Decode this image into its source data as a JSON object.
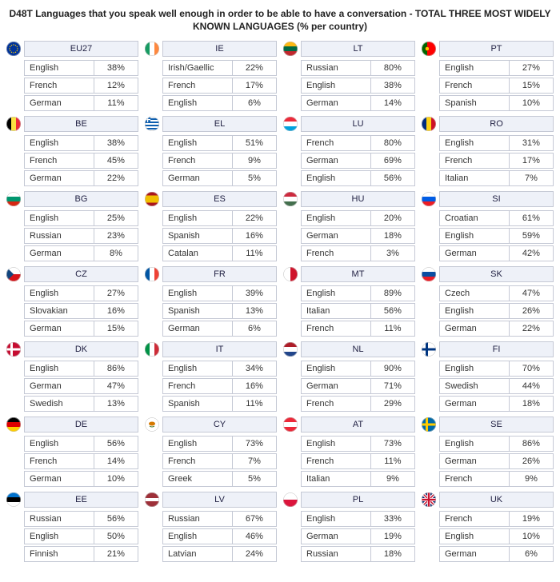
{
  "title": "D48T Languages that you speak well enough in order to be able to have a conversation - TOTAL THREE MOST WIDELY KNOWN LANGUAGES (% per country)",
  "colors": {
    "border": "#c5c9d5",
    "header_bg": "#eef1f8",
    "cell_bg": "#ffffff",
    "text": "#333333"
  },
  "columns": [
    [
      {
        "code": "EU27",
        "flag": "eu",
        "rows": [
          [
            "English",
            "38%"
          ],
          [
            "French",
            "12%"
          ],
          [
            "German",
            "11%"
          ]
        ]
      },
      {
        "code": "BE",
        "flag": "be",
        "rows": [
          [
            "English",
            "38%"
          ],
          [
            "French",
            "45%"
          ],
          [
            "German",
            "22%"
          ]
        ]
      },
      {
        "code": "BG",
        "flag": "bg",
        "rows": [
          [
            "English",
            "25%"
          ],
          [
            "Russian",
            "23%"
          ],
          [
            "German",
            "8%"
          ]
        ]
      },
      {
        "code": "CZ",
        "flag": "cz",
        "rows": [
          [
            "English",
            "27%"
          ],
          [
            "Slovakian",
            "16%"
          ],
          [
            "German",
            "15%"
          ]
        ]
      },
      {
        "code": "DK",
        "flag": "dk",
        "rows": [
          [
            "English",
            "86%"
          ],
          [
            "German",
            "47%"
          ],
          [
            "Swedish",
            "13%"
          ]
        ]
      },
      {
        "code": "DE",
        "flag": "de",
        "rows": [
          [
            "English",
            "56%"
          ],
          [
            "French",
            "14%"
          ],
          [
            "German",
            "10%"
          ]
        ]
      },
      {
        "code": "EE",
        "flag": "ee",
        "rows": [
          [
            "Russian",
            "56%"
          ],
          [
            "English",
            "50%"
          ],
          [
            "Finnish",
            "21%"
          ]
        ]
      }
    ],
    [
      {
        "code": "IE",
        "flag": "ie",
        "rows": [
          [
            "Irish/Gaellic",
            "22%"
          ],
          [
            "French",
            "17%"
          ],
          [
            "English",
            "6%"
          ]
        ]
      },
      {
        "code": "EL",
        "flag": "el",
        "rows": [
          [
            "English",
            "51%"
          ],
          [
            "French",
            "9%"
          ],
          [
            "German",
            "5%"
          ]
        ]
      },
      {
        "code": "ES",
        "flag": "es",
        "rows": [
          [
            "English",
            "22%"
          ],
          [
            "Spanish",
            "16%"
          ],
          [
            "Catalan",
            "11%"
          ]
        ]
      },
      {
        "code": "FR",
        "flag": "fr",
        "rows": [
          [
            "English",
            "39%"
          ],
          [
            "Spanish",
            "13%"
          ],
          [
            "German",
            "6%"
          ]
        ]
      },
      {
        "code": "IT",
        "flag": "it",
        "rows": [
          [
            "English",
            "34%"
          ],
          [
            "French",
            "16%"
          ],
          [
            "Spanish",
            "11%"
          ]
        ]
      },
      {
        "code": "CY",
        "flag": "cy",
        "rows": [
          [
            "English",
            "73%"
          ],
          [
            "French",
            "7%"
          ],
          [
            "Greek",
            "5%"
          ]
        ]
      },
      {
        "code": "LV",
        "flag": "lv",
        "rows": [
          [
            "Russian",
            "67%"
          ],
          [
            "English",
            "46%"
          ],
          [
            "Latvian",
            "24%"
          ]
        ]
      }
    ],
    [
      {
        "code": "LT",
        "flag": "lt",
        "rows": [
          [
            "Russian",
            "80%"
          ],
          [
            "English",
            "38%"
          ],
          [
            "German",
            "14%"
          ]
        ]
      },
      {
        "code": "LU",
        "flag": "lu",
        "rows": [
          [
            "French",
            "80%"
          ],
          [
            "German",
            "69%"
          ],
          [
            "English",
            "56%"
          ]
        ]
      },
      {
        "code": "HU",
        "flag": "hu",
        "rows": [
          [
            "English",
            "20%"
          ],
          [
            "German",
            "18%"
          ],
          [
            "French",
            "3%"
          ]
        ]
      },
      {
        "code": "MT",
        "flag": "mt",
        "rows": [
          [
            "English",
            "89%"
          ],
          [
            "Italian",
            "56%"
          ],
          [
            "French",
            "11%"
          ]
        ]
      },
      {
        "code": "NL",
        "flag": "nl",
        "rows": [
          [
            "English",
            "90%"
          ],
          [
            "German",
            "71%"
          ],
          [
            "French",
            "29%"
          ]
        ]
      },
      {
        "code": "AT",
        "flag": "at",
        "rows": [
          [
            "English",
            "73%"
          ],
          [
            "French",
            "11%"
          ],
          [
            "Italian",
            "9%"
          ]
        ]
      },
      {
        "code": "PL",
        "flag": "pl",
        "rows": [
          [
            "English",
            "33%"
          ],
          [
            "German",
            "19%"
          ],
          [
            "Russian",
            "18%"
          ]
        ]
      }
    ],
    [
      {
        "code": "PT",
        "flag": "pt",
        "rows": [
          [
            "English",
            "27%"
          ],
          [
            "French",
            "15%"
          ],
          [
            "Spanish",
            "10%"
          ]
        ]
      },
      {
        "code": "RO",
        "flag": "ro",
        "rows": [
          [
            "English",
            "31%"
          ],
          [
            "French",
            "17%"
          ],
          [
            "Italian",
            "7%"
          ]
        ]
      },
      {
        "code": "SI",
        "flag": "si",
        "rows": [
          [
            "Croatian",
            "61%"
          ],
          [
            "English",
            "59%"
          ],
          [
            "German",
            "42%"
          ]
        ]
      },
      {
        "code": "SK",
        "flag": "sk",
        "rows": [
          [
            "Czech",
            "47%"
          ],
          [
            "English",
            "26%"
          ],
          [
            "German",
            "22%"
          ]
        ]
      },
      {
        "code": "FI",
        "flag": "fi",
        "rows": [
          [
            "English",
            "70%"
          ],
          [
            "Swedish",
            "44%"
          ],
          [
            "German",
            "18%"
          ]
        ]
      },
      {
        "code": "SE",
        "flag": "se",
        "rows": [
          [
            "English",
            "86%"
          ],
          [
            "German",
            "26%"
          ],
          [
            "French",
            "9%"
          ]
        ]
      },
      {
        "code": "UK",
        "flag": "uk",
        "rows": [
          [
            "French",
            "19%"
          ],
          [
            "English",
            "10%"
          ],
          [
            "German",
            "6%"
          ]
        ]
      }
    ]
  ],
  "flags": {
    "eu": [
      [
        "circle",
        "#003399"
      ],
      [
        "stars",
        "#ffcc00"
      ]
    ],
    "be": [
      [
        "v3",
        "#000000",
        "#fae042",
        "#ed2939"
      ]
    ],
    "bg": [
      [
        "h3",
        "#ffffff",
        "#00966e",
        "#d62612"
      ]
    ],
    "cz": [
      [
        "h2",
        "#ffffff",
        "#d7141a"
      ],
      [
        "tri",
        "#11457e"
      ]
    ],
    "dk": [
      [
        "bg",
        "#c60c30"
      ],
      [
        "cross",
        "#ffffff"
      ]
    ],
    "de": [
      [
        "h3",
        "#000000",
        "#dd0000",
        "#ffce00"
      ]
    ],
    "ee": [
      [
        "h3",
        "#0072ce",
        "#000000",
        "#ffffff"
      ]
    ],
    "ie": [
      [
        "v3",
        "#169b62",
        "#ffffff",
        "#ff883e"
      ]
    ],
    "el": [
      [
        "bg",
        "#0d5eaf"
      ],
      [
        "hstripes",
        "#ffffff"
      ]
    ],
    "es": [
      [
        "h3w",
        "#aa151b",
        "#f1bf00",
        "#aa151b"
      ]
    ],
    "fr": [
      [
        "v3",
        "#0055a4",
        "#ffffff",
        "#ef4135"
      ]
    ],
    "it": [
      [
        "v3",
        "#009246",
        "#ffffff",
        "#ce2b37"
      ]
    ],
    "cy": [
      [
        "bg",
        "#ffffff"
      ],
      [
        "blob",
        "#d57800"
      ]
    ],
    "lv": [
      [
        "h3w2",
        "#9e3039",
        "#ffffff",
        "#9e3039"
      ]
    ],
    "lt": [
      [
        "h3",
        "#fdb913",
        "#006a44",
        "#c1272d"
      ]
    ],
    "lu": [
      [
        "h3",
        "#ed2939",
        "#ffffff",
        "#00a1de"
      ]
    ],
    "hu": [
      [
        "h3",
        "#cd2a3e",
        "#ffffff",
        "#436f4d"
      ]
    ],
    "mt": [
      [
        "v2",
        "#ffffff",
        "#cf142b"
      ]
    ],
    "nl": [
      [
        "h3",
        "#ae1c28",
        "#ffffff",
        "#21468b"
      ]
    ],
    "at": [
      [
        "h3",
        "#ed2939",
        "#ffffff",
        "#ed2939"
      ]
    ],
    "pl": [
      [
        "h2",
        "#ffffff",
        "#dc143c"
      ]
    ],
    "pt": [
      [
        "v2w",
        "#006600",
        "#ff0000"
      ]
    ],
    "ro": [
      [
        "v3",
        "#002b7f",
        "#fcd116",
        "#ce1126"
      ]
    ],
    "si": [
      [
        "h3",
        "#ffffff",
        "#005ce5",
        "#ed1c24"
      ]
    ],
    "sk": [
      [
        "h3",
        "#ffffff",
        "#0b4ea2",
        "#ee1c25"
      ]
    ],
    "fi": [
      [
        "bg",
        "#ffffff"
      ],
      [
        "cross",
        "#003580"
      ]
    ],
    "se": [
      [
        "bg",
        "#006aa7"
      ],
      [
        "cross",
        "#fecc00"
      ]
    ],
    "uk": [
      [
        "bg",
        "#012169"
      ],
      [
        "ukdiag",
        "#ffffff",
        "#c8102e"
      ],
      [
        "ukcross",
        "#ffffff",
        "#c8102e"
      ]
    ]
  }
}
